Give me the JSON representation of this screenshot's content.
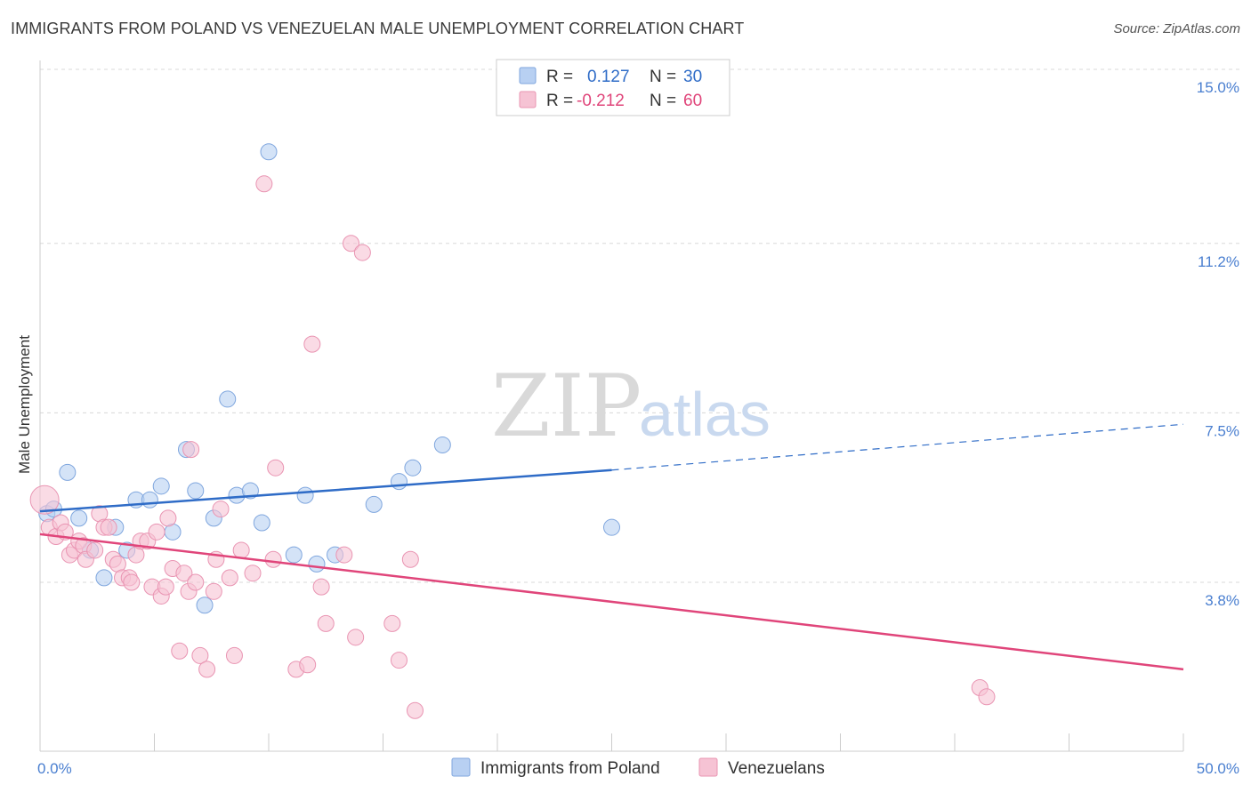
{
  "title": "IMMIGRANTS FROM POLAND VS VENEZUELAN MALE UNEMPLOYMENT CORRELATION CHART",
  "source": "Source: ZipAtlas.com",
  "watermark": {
    "zip": "ZIP",
    "atlas": "atlas"
  },
  "colors": {
    "blue_fill": "#b8d0f2",
    "blue_stroke": "#7fa6de",
    "blue_line": "#2f6cc7",
    "pink_fill": "#f6c3d4",
    "pink_stroke": "#e994b2",
    "pink_line": "#e0457a",
    "grid": "#d8d8d8",
    "axis_text": "#4a7fd0"
  },
  "legend": {
    "rows": [
      {
        "r_label": "R =",
        "r_value": "0.127",
        "n_label": "N =",
        "n_value": "30"
      },
      {
        "r_label": "R =",
        "r_value": "-0.212",
        "n_label": "N =",
        "n_value": "60"
      }
    ]
  },
  "chart_data": {
    "type": "scatter",
    "title": "IMMIGRANTS FROM POLAND VS VENEZUELAN MALE UNEMPLOYMENT CORRELATION CHART",
    "xlabel": "",
    "ylabel": "Male Unemployment",
    "xlim": [
      0,
      50
    ],
    "ylim": [
      0.5,
      15.0
    ],
    "x_tick_labels": [
      "0.0%",
      "50.0%"
    ],
    "y_ticks": [
      3.8,
      7.5,
      11.2,
      15.0
    ],
    "y_tick_labels": [
      "3.8%",
      "7.5%",
      "11.2%",
      "15.0%"
    ],
    "grid": true,
    "legend_position": "bottom",
    "series": [
      {
        "name": "Immigrants from Poland",
        "color": "blue",
        "points": [
          [
            0.3,
            5.3
          ],
          [
            0.6,
            5.4
          ],
          [
            1.2,
            6.2
          ],
          [
            1.7,
            5.2
          ],
          [
            2.2,
            4.5
          ],
          [
            2.8,
            3.9
          ],
          [
            3.3,
            5.0
          ],
          [
            3.8,
            4.5
          ],
          [
            4.2,
            5.6
          ],
          [
            4.8,
            5.6
          ],
          [
            5.3,
            5.9
          ],
          [
            5.8,
            4.9
          ],
          [
            6.4,
            6.7
          ],
          [
            6.8,
            5.8
          ],
          [
            7.2,
            3.3
          ],
          [
            7.6,
            5.2
          ],
          [
            8.2,
            7.8
          ],
          [
            8.6,
            5.7
          ],
          [
            9.2,
            5.8
          ],
          [
            9.7,
            5.1
          ],
          [
            11.1,
            4.4
          ],
          [
            11.6,
            5.7
          ],
          [
            12.1,
            4.2
          ],
          [
            12.9,
            4.4
          ],
          [
            14.6,
            5.5
          ],
          [
            15.7,
            6.0
          ],
          [
            16.3,
            6.3
          ],
          [
            17.6,
            6.8
          ],
          [
            25.0,
            5.0
          ],
          [
            10.0,
            13.2
          ]
        ],
        "trend": {
          "x0": 0,
          "y0": 5.35,
          "x1": 25.0,
          "y1": 6.25,
          "dashed_to_x": 50,
          "dashed_to_y": 7.25
        }
      },
      {
        "name": "Venezuelans",
        "color": "pink",
        "points": [
          [
            0.2,
            5.6
          ],
          [
            0.4,
            5.0
          ],
          [
            0.7,
            4.8
          ],
          [
            0.9,
            5.1
          ],
          [
            1.1,
            4.9
          ],
          [
            1.3,
            4.4
          ],
          [
            1.5,
            4.5
          ],
          [
            1.7,
            4.7
          ],
          [
            1.9,
            4.6
          ],
          [
            2.0,
            4.3
          ],
          [
            2.4,
            4.5
          ],
          [
            2.6,
            5.3
          ],
          [
            2.8,
            5.0
          ],
          [
            3.0,
            5.0
          ],
          [
            3.2,
            4.3
          ],
          [
            3.4,
            4.2
          ],
          [
            3.6,
            3.9
          ],
          [
            3.9,
            3.9
          ],
          [
            4.0,
            3.8
          ],
          [
            4.2,
            4.4
          ],
          [
            4.4,
            4.7
          ],
          [
            4.7,
            4.7
          ],
          [
            4.9,
            3.7
          ],
          [
            5.1,
            4.9
          ],
          [
            5.3,
            3.5
          ],
          [
            5.5,
            3.7
          ],
          [
            5.6,
            5.2
          ],
          [
            5.8,
            4.1
          ],
          [
            6.1,
            2.3
          ],
          [
            6.3,
            4.0
          ],
          [
            6.5,
            3.6
          ],
          [
            6.6,
            6.7
          ],
          [
            6.8,
            3.8
          ],
          [
            7.0,
            2.2
          ],
          [
            7.3,
            1.9
          ],
          [
            7.6,
            3.6
          ],
          [
            7.7,
            4.3
          ],
          [
            7.9,
            5.4
          ],
          [
            8.3,
            3.9
          ],
          [
            8.5,
            2.2
          ],
          [
            8.8,
            4.5
          ],
          [
            9.3,
            4.0
          ],
          [
            9.8,
            12.5
          ],
          [
            10.2,
            4.3
          ],
          [
            10.3,
            6.3
          ],
          [
            11.2,
            1.9
          ],
          [
            11.7,
            2.0
          ],
          [
            11.9,
            9.0
          ],
          [
            12.3,
            3.7
          ],
          [
            12.5,
            2.9
          ],
          [
            13.3,
            4.4
          ],
          [
            13.6,
            11.2
          ],
          [
            14.1,
            11.0
          ],
          [
            13.8,
            2.6
          ],
          [
            15.4,
            2.9
          ],
          [
            15.7,
            2.1
          ],
          [
            16.2,
            4.3
          ],
          [
            16.4,
            1.0
          ],
          [
            41.1,
            1.5
          ],
          [
            41.4,
            1.3
          ]
        ],
        "trend": {
          "x0": 0,
          "y0": 4.85,
          "x1": 50,
          "y1": 1.9
        }
      }
    ]
  }
}
